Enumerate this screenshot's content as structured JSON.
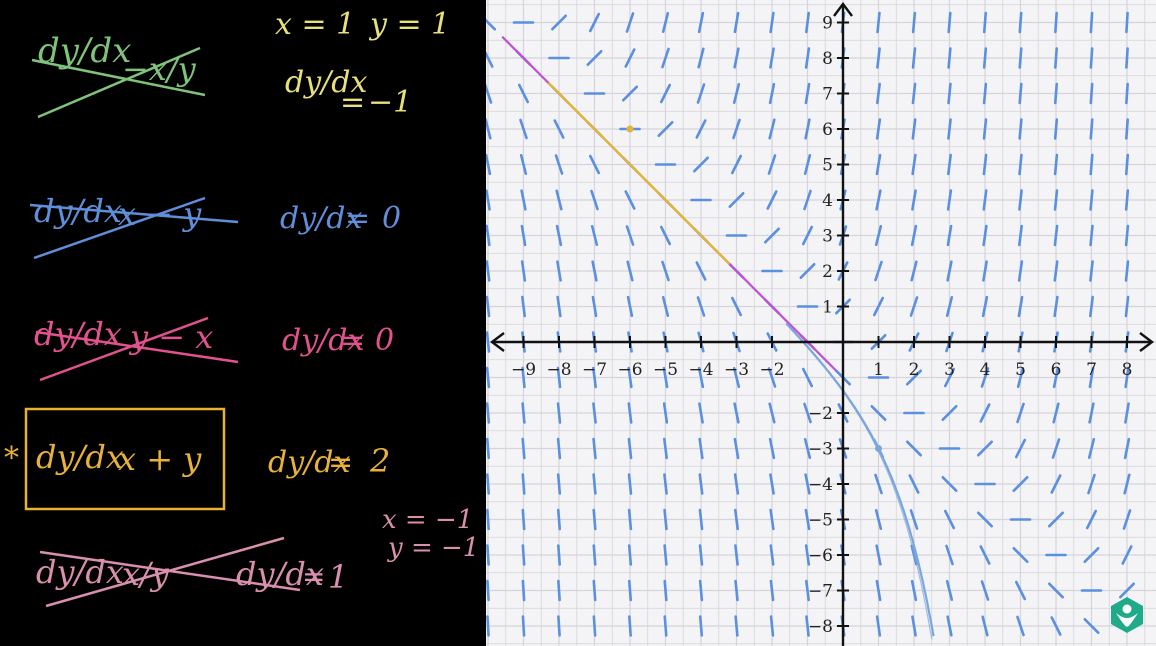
{
  "blackboard": {
    "top_note": {
      "x_eq": "x = 1",
      "y_eq": "y = 1"
    },
    "equations": [
      {
        "lhs": "dy/dx",
        "rhs": "−x/y",
        "crossed": true,
        "color": "#7fc47a",
        "eval_rhs": "−1"
      },
      {
        "lhs": "dy/dx",
        "rhs": "x − y",
        "crossed": true,
        "color": "#5f8fd8",
        "eval_rhs": "0"
      },
      {
        "lhs": "dy/dx",
        "rhs": "y − x",
        "crossed": true,
        "color": "#e2528f",
        "eval_rhs": "0"
      },
      {
        "lhs": "dy/dx",
        "rhs": "x + y",
        "crossed": false,
        "boxed": true,
        "starred": true,
        "color": "#e8b23a",
        "eval_rhs": "2"
      },
      {
        "lhs": "dy/dx",
        "rhs": "x/y",
        "crossed": true,
        "color": "#d98fae",
        "eval_rhs": "1"
      }
    ],
    "bottom_note": {
      "x_eq": "x = −1",
      "y_eq": "y = −1"
    },
    "star": "*",
    "eq_sign": "="
  },
  "plot": {
    "x_ticks": [
      "−9",
      "−8",
      "−7",
      "−6",
      "−5",
      "−4",
      "−3",
      "−2",
      "1",
      "2",
      "3",
      "4",
      "5",
      "6",
      "7",
      "8"
    ],
    "y_ticks": [
      "9",
      "8",
      "7",
      "6",
      "5",
      "4",
      "3",
      "2",
      "1",
      "−2",
      "−3",
      "−4",
      "−5",
      "−6",
      "−7",
      "−8"
    ],
    "slope_field_equation": "dy/dx = x + y",
    "colors": {
      "grid": "#d4d4da",
      "axis": "#111111",
      "segment": "#5b8fe0",
      "magenta_line": "#c04fd6",
      "yellow_curve": "#e0b43a",
      "blue_curve": "#7aa6dc"
    }
  },
  "logo": {
    "icon": "khan-academy-leaf-icon",
    "color": "#1fab89"
  }
}
